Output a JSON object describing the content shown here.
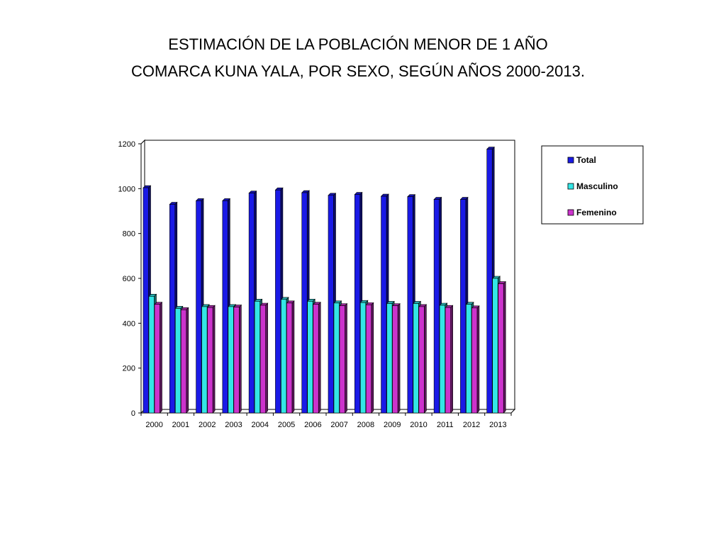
{
  "page": {
    "title_line1": "ESTIMACIÓN DE LA POBLACIÓN MENOR DE 1 AÑO",
    "title_line2": "COMARCA KUNA YALA, POR SEXO, SEGÚN AÑOS  2000-2013."
  },
  "chart_data": {
    "type": "bar",
    "title": "ESTIMACIÓN DE LA POBLACIÓN MENOR DE 1 AÑO COMARCA KUNA YALA, POR SEXO, SEGÚN AÑOS  2000-2013.",
    "xlabel": "",
    "ylabel": "",
    "categories": [
      "2000",
      "2001",
      "2002",
      "2003",
      "2004",
      "2005",
      "2006",
      "2007",
      "2008",
      "2009",
      "2010",
      "2011",
      "2012",
      "2013"
    ],
    "series": [
      {
        "name": "Total",
        "color": "#1a1ae6",
        "values": [
          1004,
          930,
          946,
          946,
          980,
          994,
          982,
          970,
          974,
          966,
          964,
          952,
          952,
          1176
        ]
      },
      {
        "name": "Masculino",
        "color": "#33e6e6",
        "values": [
          520,
          466,
          474,
          474,
          498,
          506,
          498,
          490,
          492,
          488,
          488,
          480,
          484,
          600
        ]
      },
      {
        "name": "Femenino",
        "color": "#cc33cc",
        "values": [
          484,
          460,
          470,
          472,
          480,
          490,
          484,
          478,
          482,
          478,
          474,
          470,
          468,
          576
        ]
      }
    ],
    "yticks": [
      "0",
      "200",
      "400",
      "600",
      "800",
      "1000",
      "1200"
    ],
    "ylim": [
      0,
      1200
    ],
    "grid": false,
    "legend": "right",
    "style": "3d-bar"
  }
}
